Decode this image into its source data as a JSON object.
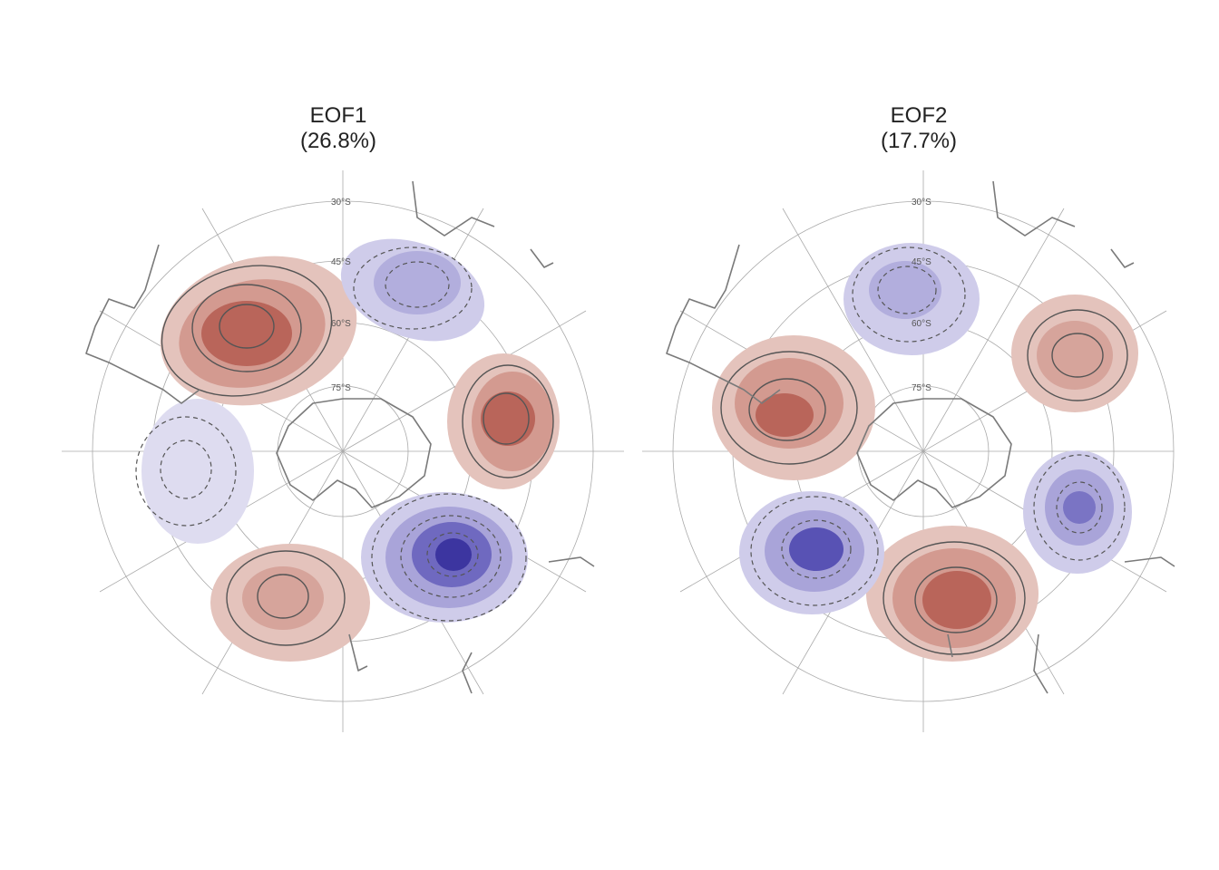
{
  "figure": {
    "panels": [
      {
        "title": "EOF1",
        "subtitle": "(26.8%)",
        "latitude_labels": [
          "30°S",
          "45°S",
          "60°S",
          "75°S"
        ],
        "colors": {
          "positive": "#b5554b",
          "negative": "#4a46a8",
          "contour": "#555555",
          "coast": "#777777"
        }
      },
      {
        "title": "EOF2",
        "subtitle": "(17.7%)",
        "latitude_labels": [
          "30°S",
          "45°S",
          "60°S",
          "75°S"
        ],
        "colors": {
          "positive": "#b5554b",
          "negative": "#4a46a8",
          "contour": "#555555",
          "coast": "#777777"
        }
      }
    ]
  }
}
